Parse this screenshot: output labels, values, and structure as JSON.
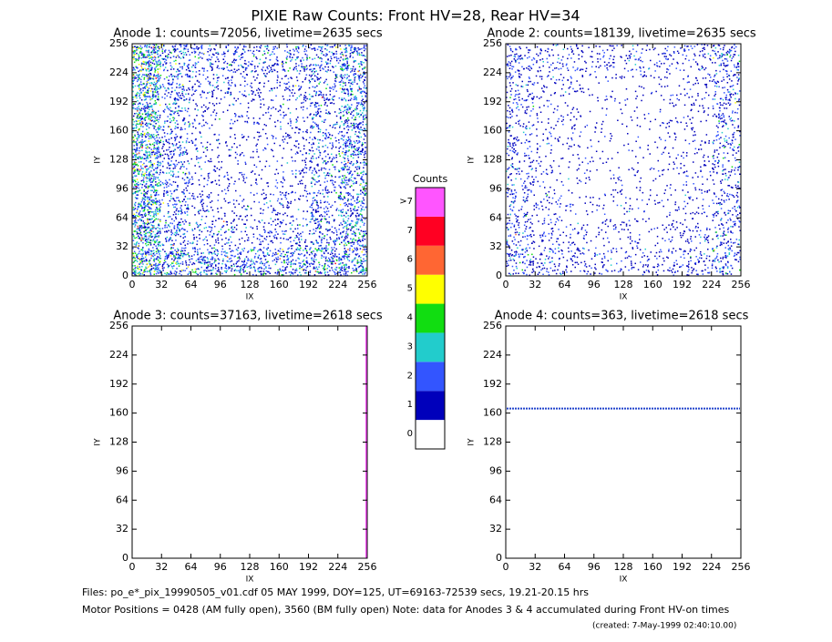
{
  "title": "PIXIE Raw Counts:  Front HV=28, Rear HV=34",
  "chart_data": [
    {
      "type": "heatmap",
      "title": "Anode 1: counts=72056, livetime=2635 secs",
      "xlabel": "IX",
      "ylabel": "IY",
      "xlim": [
        0,
        256
      ],
      "ylim": [
        0,
        256
      ],
      "xticks": [
        0,
        32,
        64,
        96,
        128,
        160,
        192,
        224,
        256
      ],
      "yticks": [
        0,
        32,
        64,
        96,
        128,
        160,
        192,
        224,
        256
      ],
      "z": [
        [
          3,
          1.6,
          1.2,
          1.2,
          1.2,
          1.2,
          1.4,
          2
        ],
        [
          3,
          1.4,
          0.8,
          0.7,
          0.7,
          0.8,
          1.2,
          1.8
        ],
        [
          2.8,
          1.2,
          0.6,
          0.4,
          0.4,
          0.6,
          1.1,
          1.8
        ],
        [
          2.8,
          1.2,
          0.6,
          0.4,
          0.4,
          0.6,
          1.1,
          1.8
        ],
        [
          2.8,
          1.2,
          0.6,
          0.4,
          0.4,
          0.6,
          1.1,
          1.8
        ],
        [
          2.8,
          1.2,
          0.7,
          0.5,
          0.5,
          0.7,
          1.2,
          1.8
        ],
        [
          3,
          1.4,
          0.9,
          0.8,
          0.8,
          0.9,
          1.4,
          2
        ],
        [
          3,
          2,
          1.8,
          1.6,
          1.6,
          1.8,
          2,
          2.2
        ]
      ]
    },
    {
      "type": "heatmap",
      "title": "Anode 2: counts=18139, livetime=2635 secs",
      "xlabel": "IX",
      "ylabel": "IY",
      "xlim": [
        0,
        256
      ],
      "ylim": [
        0,
        256
      ],
      "xticks": [
        0,
        32,
        64,
        96,
        128,
        160,
        192,
        224,
        256
      ],
      "yticks": [
        0,
        32,
        64,
        96,
        128,
        160,
        192,
        224,
        256
      ],
      "z": [
        [
          1,
          0.7,
          0.6,
          0.6,
          0.6,
          0.6,
          0.7,
          1.2
        ],
        [
          0.9,
          0.5,
          0.4,
          0.3,
          0.3,
          0.3,
          0.5,
          1
        ],
        [
          0.8,
          0.4,
          0.3,
          0.2,
          0.2,
          0.3,
          0.4,
          0.9
        ],
        [
          0.8,
          0.4,
          0.3,
          0.2,
          0.2,
          0.3,
          0.4,
          0.9
        ],
        [
          0.8,
          0.4,
          0.3,
          0.2,
          0.2,
          0.3,
          0.4,
          0.9
        ],
        [
          0.9,
          0.5,
          0.3,
          0.3,
          0.3,
          0.3,
          0.5,
          0.9
        ],
        [
          1,
          0.6,
          0.4,
          0.4,
          0.4,
          0.4,
          0.6,
          1
        ],
        [
          1.2,
          0.9,
          0.7,
          0.6,
          0.6,
          0.7,
          0.9,
          1.2
        ]
      ]
    },
    {
      "type": "heatmap",
      "title": "Anode 3: counts=37163, livetime=2618 secs",
      "xlabel": "IX",
      "ylabel": "IY",
      "xlim": [
        0,
        256
      ],
      "ylim": [
        0,
        256
      ],
      "xticks": [
        0,
        32,
        64,
        96,
        128,
        160,
        192,
        224,
        256
      ],
      "yticks": [
        0,
        32,
        64,
        96,
        128,
        160,
        192,
        224,
        256
      ],
      "highlight": {
        "axis": "x",
        "value": 255,
        "color": "#ff55ff"
      }
    },
    {
      "type": "heatmap",
      "title": "Anode 4: counts=363, livetime=2618 secs",
      "xlabel": "IX",
      "ylabel": "IY",
      "xlim": [
        0,
        256
      ],
      "ylim": [
        0,
        256
      ],
      "xticks": [
        0,
        32,
        64,
        96,
        128,
        160,
        192,
        224,
        256
      ],
      "yticks": [
        0,
        32,
        64,
        96,
        128,
        160,
        192,
        224,
        256
      ],
      "highlight": {
        "axis": "y",
        "value": 165,
        "color": "#2244cc"
      }
    }
  ],
  "colorbar": {
    "title": "Counts",
    "ticks": [
      0,
      1,
      2,
      3,
      4,
      5,
      6,
      7,
      {
        "value": 8,
        "label": ">7"
      }
    ],
    "colors": [
      "#ffffff",
      "#0000bb",
      "#3355ff",
      "#22cccc",
      "#11dd11",
      "#ffff00",
      "#ff6633",
      "#ff0022",
      "#ff55ff"
    ]
  },
  "footer": [
    "Files: po_e*_pix_19990505_v01.cdf    05 MAY 1999, DOY=125, UT=69163-72539 secs, 19.21-20.15 hrs",
    "Motor Positions = 0428 (AM fully open), 3560 (BM fully open)    Note: data for Anodes 3 & 4 accumulated during Front HV-on times",
    "(created:  7-May-1999 02:40:10.00)"
  ]
}
